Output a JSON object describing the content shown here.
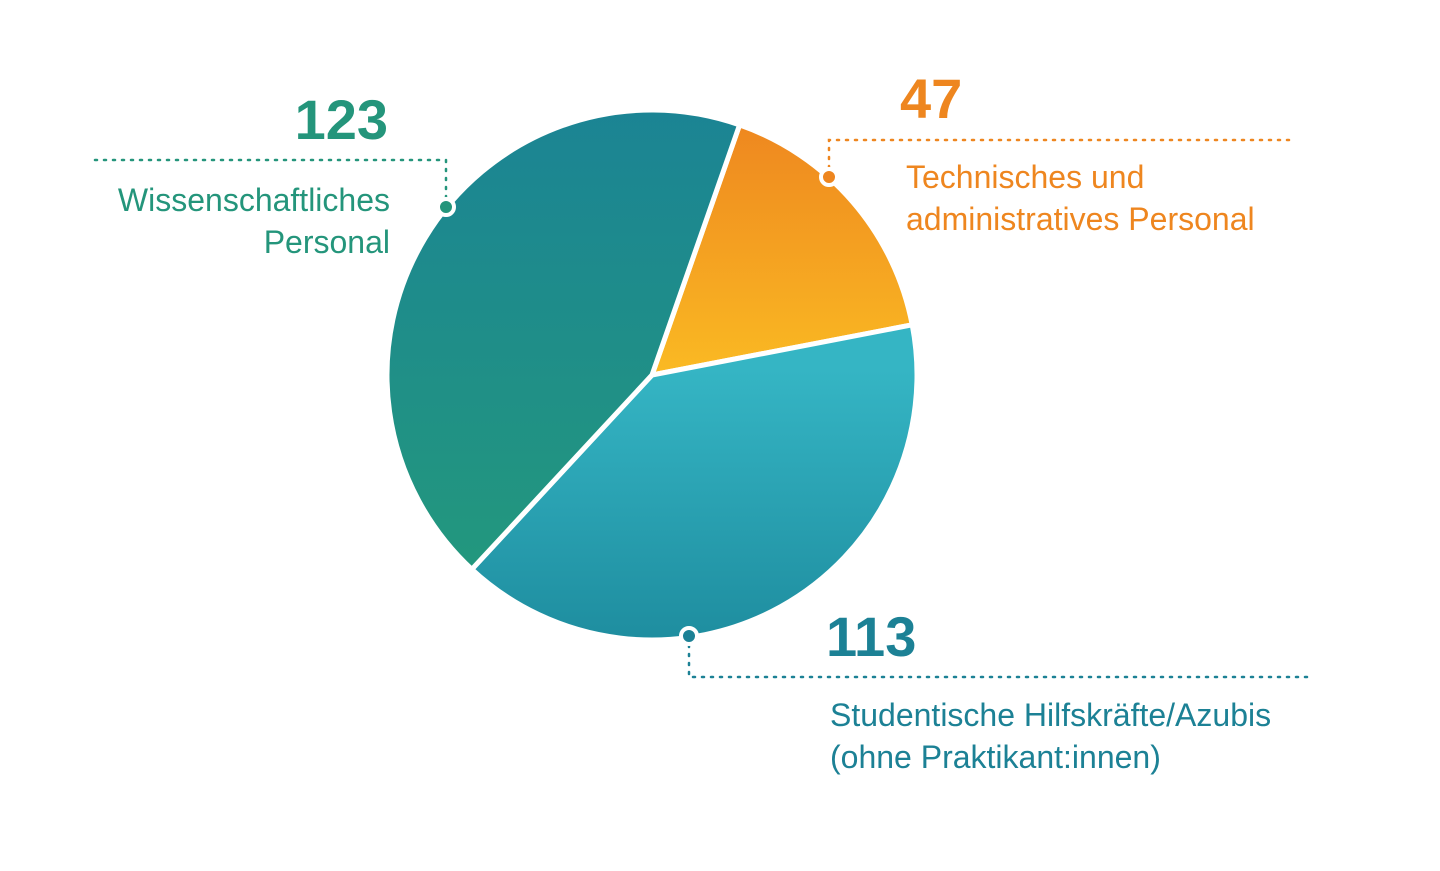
{
  "chart_data": {
    "type": "pie",
    "slices": [
      {
        "value": 123,
        "label_lines": [
          "Wissenschaftliches",
          "Personal"
        ],
        "color_dark": "#1b8494",
        "color_light": "#23987d",
        "text_color": "#24957b"
      },
      {
        "value": 47,
        "label_lines": [
          "Technisches und",
          "administratives Personal"
        ],
        "color_dark": "#ee861f",
        "color_light": "#fab923",
        "text_color": "#ee861f"
      },
      {
        "value": 113,
        "label_lines": [
          "Studentische Hilfskräfte/Azubis",
          "(ohne Praktikant:innen)"
        ],
        "color_dark": "#1e8d9f",
        "color_light": "#35b5c4",
        "text_color": "#1c8195"
      }
    ]
  }
}
